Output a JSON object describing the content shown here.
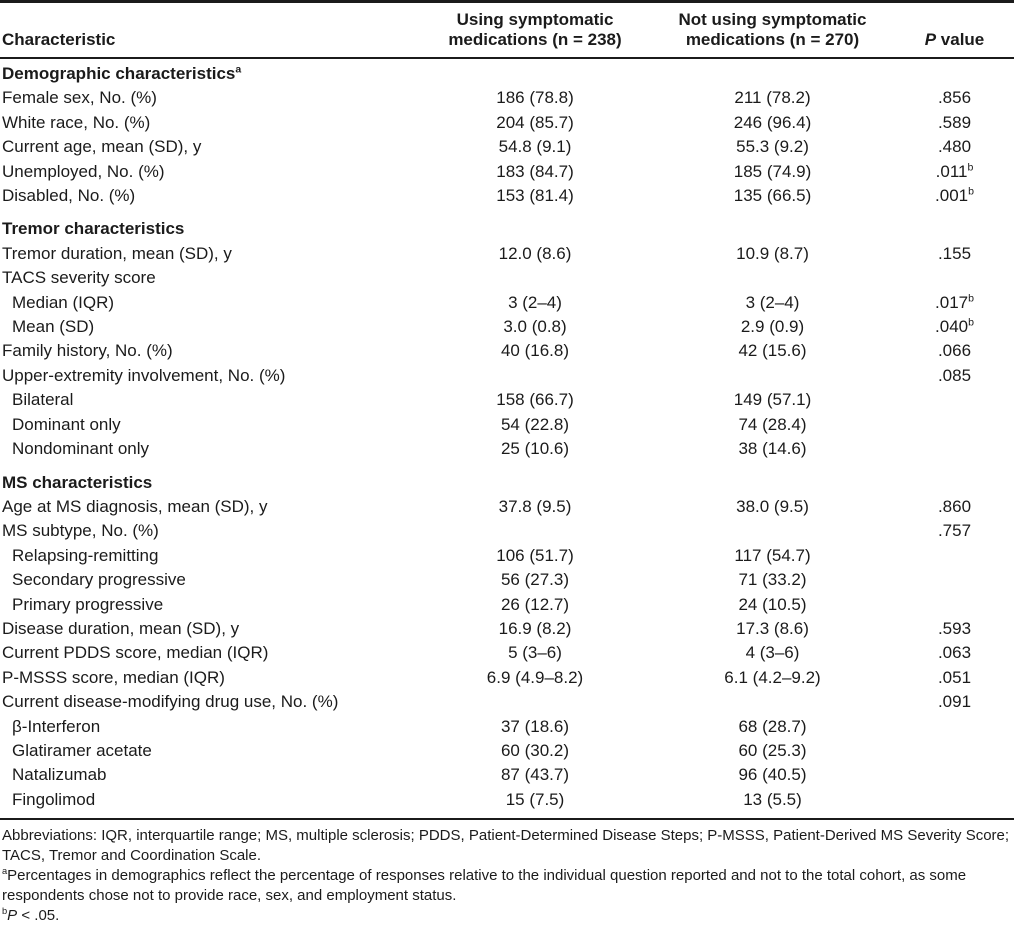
{
  "table": {
    "type": "table",
    "header": {
      "col1": "Characteristic",
      "col2_line1": "Using symptomatic",
      "col2_line2": "medications (n = 238)",
      "col3_line1": "Not using symptomatic",
      "col3_line2": "medications (n = 270)",
      "col4_p": "P",
      "col4_rest": " value"
    },
    "rows": [
      {
        "kind": "section",
        "label": "Demographic characteristics",
        "sup": "a",
        "v1": "",
        "v2": "",
        "p": "",
        "psup": ""
      },
      {
        "kind": "data",
        "indent": false,
        "label": "Female sex, No. (%)",
        "v1": "186 (78.8)",
        "v2": "211 (78.2)",
        "p": ".856",
        "psup": ""
      },
      {
        "kind": "data",
        "indent": false,
        "label": "White race, No. (%)",
        "v1": "204 (85.7)",
        "v2": "246 (96.4)",
        "p": ".589",
        "psup": ""
      },
      {
        "kind": "data",
        "indent": false,
        "label": "Current age, mean (SD), y",
        "v1": "54.8 (9.1)",
        "v2": "55.3 (9.2)",
        "p": ".480",
        "psup": ""
      },
      {
        "kind": "data",
        "indent": false,
        "label": "Unemployed, No. (%)",
        "v1": "183 (84.7)",
        "v2": "185 (74.9)",
        "p": ".011",
        "psup": "b"
      },
      {
        "kind": "data",
        "indent": false,
        "label": "Disabled, No. (%)",
        "v1": "153 (81.4)",
        "v2": "135 (66.5)",
        "p": ".001",
        "psup": "b"
      },
      {
        "kind": "section",
        "label": "Tremor characteristics",
        "sup": "",
        "v1": "",
        "v2": "",
        "p": "",
        "psup": ""
      },
      {
        "kind": "data",
        "indent": false,
        "label": "Tremor duration, mean (SD), y",
        "v1": "12.0 (8.6)",
        "v2": "10.9 (8.7)",
        "p": ".155",
        "psup": ""
      },
      {
        "kind": "data",
        "indent": false,
        "label": "TACS severity score",
        "v1": "",
        "v2": "",
        "p": "",
        "psup": ""
      },
      {
        "kind": "data",
        "indent": true,
        "label": "Median (IQR)",
        "v1": "3 (2–4)",
        "v2": "3 (2–4)",
        "p": ".017",
        "psup": "b"
      },
      {
        "kind": "data",
        "indent": true,
        "label": "Mean (SD)",
        "v1": "3.0 (0.8)",
        "v2": "2.9 (0.9)",
        "p": ".040",
        "psup": "b"
      },
      {
        "kind": "data",
        "indent": false,
        "label": "Family history, No. (%)",
        "v1": "40 (16.8)",
        "v2": "42 (15.6)",
        "p": ".066",
        "psup": ""
      },
      {
        "kind": "data",
        "indent": false,
        "label": "Upper-extremity involvement, No. (%)",
        "v1": "",
        "v2": "",
        "p": ".085",
        "psup": ""
      },
      {
        "kind": "data",
        "indent": true,
        "label": "Bilateral",
        "v1": "158 (66.7)",
        "v2": "149 (57.1)",
        "p": "",
        "psup": ""
      },
      {
        "kind": "data",
        "indent": true,
        "label": "Dominant only",
        "v1": "54 (22.8)",
        "v2": "74 (28.4)",
        "p": "",
        "psup": ""
      },
      {
        "kind": "data",
        "indent": true,
        "label": "Nondominant only",
        "v1": "25 (10.6)",
        "v2": "38 (14.6)",
        "p": "",
        "psup": ""
      },
      {
        "kind": "section",
        "label": "MS characteristics",
        "sup": "",
        "v1": "",
        "v2": "",
        "p": "",
        "psup": ""
      },
      {
        "kind": "data",
        "indent": false,
        "label": "Age at MS diagnosis, mean (SD), y",
        "v1": "37.8 (9.5)",
        "v2": "38.0 (9.5)",
        "p": ".860",
        "psup": ""
      },
      {
        "kind": "data",
        "indent": false,
        "label": "MS subtype, No. (%)",
        "v1": "",
        "v2": "",
        "p": ".757",
        "psup": ""
      },
      {
        "kind": "data",
        "indent": true,
        "label": "Relapsing-remitting",
        "v1": "106 (51.7)",
        "v2": "117 (54.7)",
        "p": "",
        "psup": ""
      },
      {
        "kind": "data",
        "indent": true,
        "label": "Secondary progressive",
        "v1": "56 (27.3)",
        "v2": "71 (33.2)",
        "p": "",
        "psup": ""
      },
      {
        "kind": "data",
        "indent": true,
        "label": "Primary progressive",
        "v1": "26 (12.7)",
        "v2": "24 (10.5)",
        "p": "",
        "psup": ""
      },
      {
        "kind": "data",
        "indent": false,
        "label": "Disease duration, mean (SD), y",
        "v1": "16.9 (8.2)",
        "v2": "17.3 (8.6)",
        "p": ".593",
        "psup": ""
      },
      {
        "kind": "data",
        "indent": false,
        "label": "Current PDDS score, median (IQR)",
        "v1": "5 (3–6)",
        "v2": "4 (3–6)",
        "p": ".063",
        "psup": ""
      },
      {
        "kind": "data",
        "indent": false,
        "label": "P-MSSS score, median (IQR)",
        "v1": "6.9 (4.9–8.2)",
        "v2": "6.1 (4.2–9.2)",
        "p": ".051",
        "psup": ""
      },
      {
        "kind": "data",
        "indent": false,
        "label": "Current disease-modifying drug use, No. (%)",
        "v1": "",
        "v2": "",
        "p": ".091",
        "psup": ""
      },
      {
        "kind": "data",
        "indent": true,
        "label": "β-Interferon",
        "v1": "37 (18.6)",
        "v2": "68 (28.7)",
        "p": "",
        "psup": ""
      },
      {
        "kind": "data",
        "indent": true,
        "label": "Glatiramer acetate",
        "v1": "60 (30.2)",
        "v2": "60 (25.3)",
        "p": "",
        "psup": ""
      },
      {
        "kind": "data",
        "indent": true,
        "label": "Natalizumab",
        "v1": "87 (43.7)",
        "v2": "96 (40.5)",
        "p": "",
        "psup": ""
      },
      {
        "kind": "data",
        "indent": true,
        "label": "Fingolimod",
        "v1": "15 (7.5)",
        "v2": "13 (5.5)",
        "p": "",
        "psup": ""
      }
    ]
  },
  "footnotes": {
    "abbreviations": "Abbreviations: IQR, interquartile range; MS, multiple sclerosis; PDDS, Patient-Determined Disease Steps; P-MSSS, Patient-Derived MS Severity Score; TACS, Tremor and Coordination Scale.",
    "note_a_marker": "a",
    "note_a": "Percentages in demographics reflect the percentage of responses relative to the individual question reported and not to the total cohort, as some respondents chose not to provide race, sex, and employment status.",
    "note_b_marker": "b",
    "note_b_p": "P",
    "note_b_rest": " < .05."
  },
  "colors": {
    "text": "#1b1b1b",
    "rule": "#1b1b1b",
    "background": "#ffffff"
  }
}
